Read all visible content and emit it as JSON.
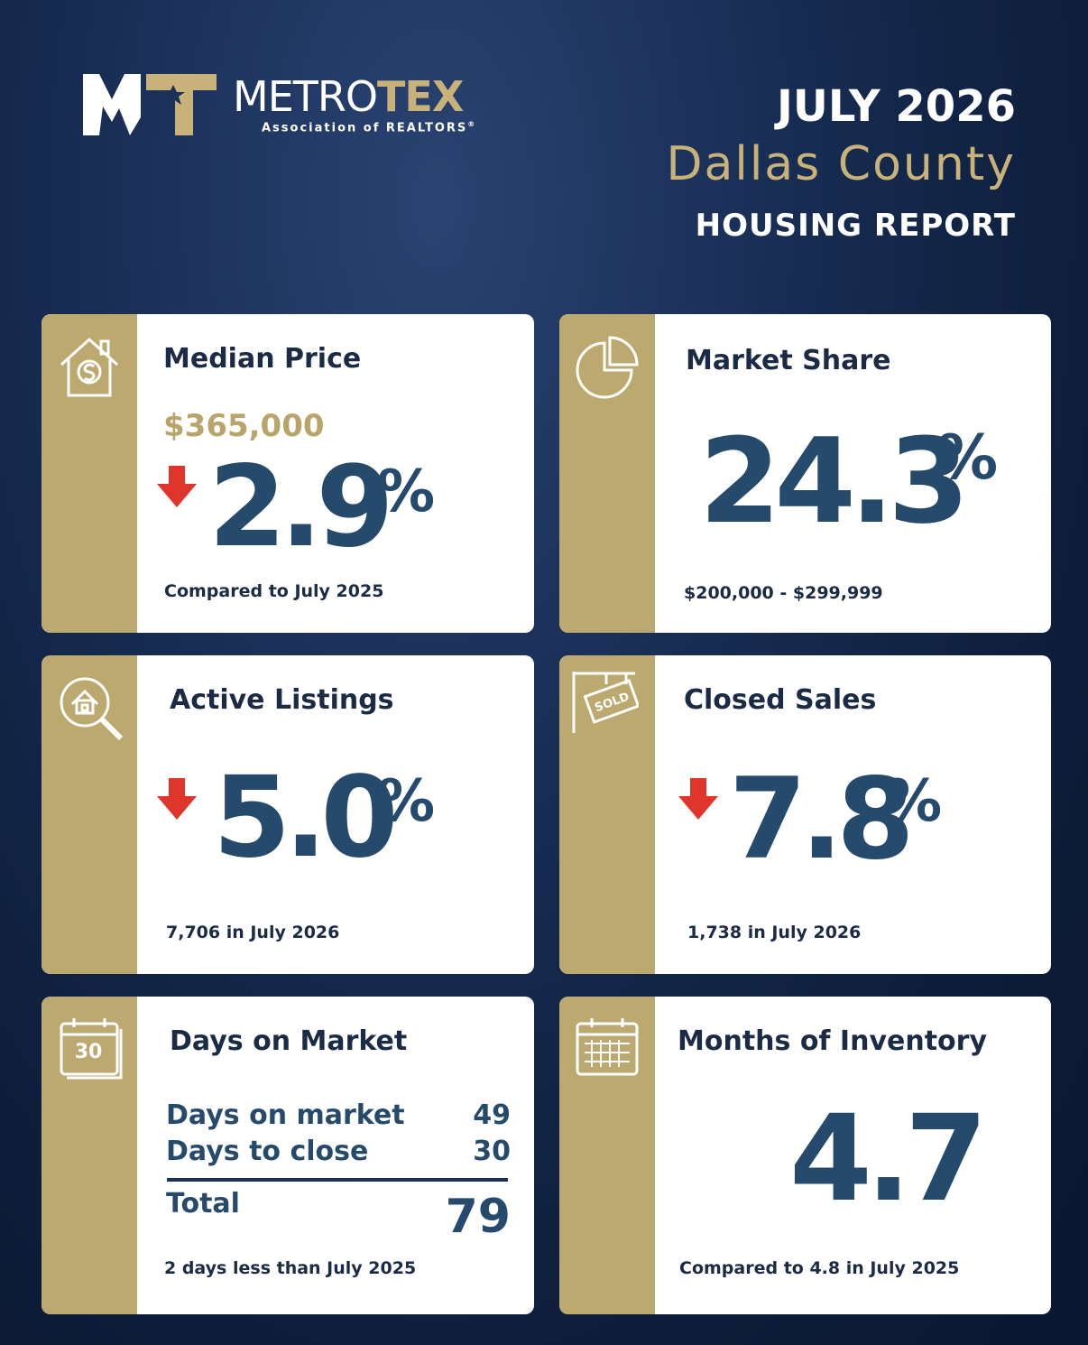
{
  "header": {
    "logo": {
      "name_part1": "METRO",
      "name_part2": "TEX",
      "tagline": "Association of REALTORS",
      "registered": "®"
    },
    "month": "JULY 2026",
    "county": "Dallas County",
    "report": "HOUSING REPORT"
  },
  "cards": [
    {
      "title": "Median Price",
      "price": "$365,000",
      "change": {
        "direction": "down",
        "value": 2.9,
        "unit": "%"
      },
      "note": "Compared to July 2025"
    },
    {
      "title": "Market Share",
      "value": 24.3,
      "unit": "%",
      "note": "$200,000 - $299,999"
    },
    {
      "title": "Active Listings",
      "icon_label": "",
      "change": {
        "direction": "down",
        "value": "5.0",
        "unit": "%"
      },
      "note": "7,706 in July 2026"
    },
    {
      "title": "Closed Sales",
      "icon_label": "SOLD",
      "change": {
        "direction": "down",
        "value": 7.8,
        "unit": "%"
      },
      "note": "1,738 in July 2026"
    },
    {
      "title": "Days on Market",
      "icon_label": "30",
      "rows": [
        {
          "label": "Days on market",
          "value": 49
        },
        {
          "label": "Days to close",
          "value": 30
        }
      ],
      "total": {
        "label": "Total",
        "value": 79
      },
      "note": "2 days less than July 2025"
    },
    {
      "title": "Months of Inventory",
      "value": 4.7,
      "note": "Compared to 4.8 in July 2025"
    }
  ]
}
